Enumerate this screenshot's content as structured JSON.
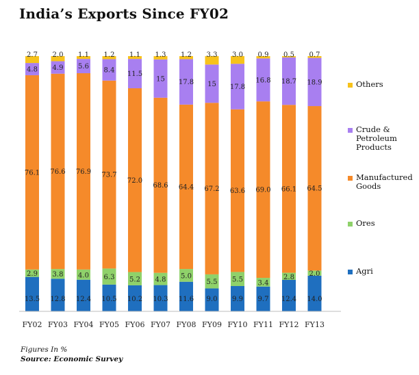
{
  "title": "India’s Exports Since FY02",
  "note": "Figures In %",
  "source": "Source: Economic Survey",
  "chart_data": {
    "type": "bar",
    "stacked": true,
    "categories": [
      "FY02",
      "FY03",
      "FY04",
      "FY05",
      "FY06",
      "FY07",
      "FY08",
      "FY09",
      "FY10",
      "FY11",
      "FY12",
      "FY13"
    ],
    "series": [
      {
        "name": "Agri",
        "color": "#1f6fbf",
        "values": [
          13.5,
          12.8,
          12.4,
          10.5,
          10.2,
          10.3,
          11.6,
          9.0,
          9.9,
          9.7,
          12.4,
          14.0
        ],
        "labels": [
          "13.5",
          "12.8",
          "12.4",
          "10.5",
          "10.2",
          "10.3",
          "11.6",
          "9.0",
          "9.9",
          "9.7",
          "12.4",
          "14.0"
        ]
      },
      {
        "name": "Ores",
        "color": "#8fd16a",
        "values": [
          2.9,
          3.8,
          4.0,
          6.3,
          5.2,
          4.8,
          5.0,
          5.5,
          5.5,
          3.4,
          2.8,
          2.0
        ],
        "labels": [
          "2.9",
          "3.8",
          "4.0",
          "6.3",
          "5.2",
          "4.8",
          "5.0",
          "5.5",
          "5.5",
          "3.4",
          "2.8",
          "2.0"
        ]
      },
      {
        "name": "Manufactured Goods",
        "color": "#f58a2a",
        "values": [
          76.1,
          76.6,
          76.9,
          73.7,
          72.0,
          68.6,
          64.4,
          67.2,
          63.6,
          69.0,
          66.1,
          64.5
        ],
        "labels": [
          "76.1",
          "76.6",
          "76.9",
          "73.7",
          "72.0",
          "68.6",
          "64.4",
          "67.2",
          "63.6",
          "69.0",
          "66.1",
          "64.5"
        ]
      },
      {
        "name": "Crude & Petroleum Products",
        "color": "#a87ff0",
        "values": [
          4.8,
          4.9,
          5.6,
          8.4,
          11.5,
          15,
          17.8,
          15,
          17.8,
          16.8,
          18.7,
          18.9
        ],
        "labels": [
          "4.8",
          "4.9",
          "5.6",
          "8.4",
          "11.5",
          "15",
          "17.8",
          "15",
          "17.8",
          "16.8",
          "18.7",
          "18.9"
        ]
      },
      {
        "name": "Others",
        "color": "#f7c21b",
        "values": [
          2.7,
          2.0,
          1.1,
          1.2,
          1.1,
          1.3,
          1.2,
          3.3,
          3.0,
          0.9,
          0.5,
          0.7
        ],
        "labels": [
          "2.7",
          "2.0",
          "1.1",
          "1.2",
          "1.1",
          "1.3",
          "1.2",
          "3.3",
          "3.0",
          "0.9",
          "0.5",
          "0.7"
        ]
      }
    ],
    "legend_order": [
      "Others",
      "Crude & Petroleum Products",
      "Manufactured Goods",
      "Ores",
      "Agri"
    ],
    "legend_labels": {
      "Others": "Others",
      "Crude & Petroleum Products": "Crude &\nPetroleum\nProducts",
      "Manufactured Goods": "Manufactured\nGoods",
      "Ores": "Ores",
      "Agri": "Agri"
    },
    "legend_position": "right",
    "grid": false
  }
}
